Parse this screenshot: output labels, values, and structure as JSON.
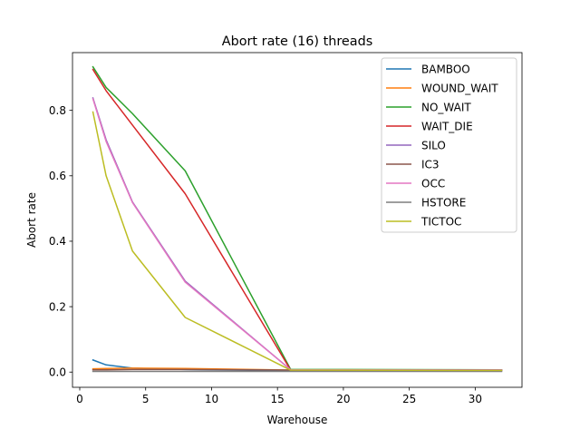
{
  "chart_data": {
    "type": "line",
    "title": "Abort rate (16) threads",
    "xlabel": "Warehouse",
    "ylabel": "Abort rate",
    "xlim": [
      -0.55,
      33.55
    ],
    "ylim": [
      -0.0465,
      0.9765
    ],
    "xticks": [
      0,
      5,
      10,
      15,
      20,
      25,
      30
    ],
    "xtick_labels": [
      "0",
      "5",
      "10",
      "15",
      "20",
      "25",
      "30"
    ],
    "yticks": [
      0.0,
      0.2,
      0.4,
      0.6,
      0.8
    ],
    "ytick_labels": [
      "0.0",
      "0.2",
      "0.4",
      "0.6",
      "0.8"
    ],
    "grid": false,
    "legend_position": "top-right",
    "x": [
      1,
      2,
      4,
      8,
      16,
      32
    ],
    "series": [
      {
        "name": "BAMBOO",
        "color": "#1f77b4",
        "values": [
          0.037,
          0.022,
          0.012,
          0.008,
          0.004,
          0.003
        ]
      },
      {
        "name": "WOUND_WAIT",
        "color": "#ff7f0e",
        "values": [
          0.01,
          0.011,
          0.012,
          0.011,
          0.006,
          0.005
        ]
      },
      {
        "name": "NO_WAIT",
        "color": "#2ca02c",
        "values": [
          0.933,
          0.87,
          0.79,
          0.615,
          0.008,
          0.007
        ]
      },
      {
        "name": "WAIT_DIE",
        "color": "#d62728",
        "values": [
          0.925,
          0.86,
          0.755,
          0.545,
          0.006,
          0.006
        ]
      },
      {
        "name": "SILO",
        "color": "#9467bd",
        "values": [
          0.838,
          0.71,
          0.52,
          0.278,
          0.007,
          0.006
        ]
      },
      {
        "name": "IC3",
        "color": "#8c564b",
        "values": [
          0.007,
          0.007,
          0.008,
          0.008,
          0.006,
          0.005
        ]
      },
      {
        "name": "OCC",
        "color": "#e377c2",
        "values": [
          0.835,
          0.705,
          0.518,
          0.275,
          0.007,
          0.006
        ]
      },
      {
        "name": "HSTORE",
        "color": "#7f7f7f",
        "values": [
          0.002,
          0.002,
          0.002,
          0.002,
          0.002,
          0.002
        ]
      },
      {
        "name": "TICTOC",
        "color": "#bcbd22",
        "values": [
          0.795,
          0.6,
          0.37,
          0.167,
          0.006,
          0.005
        ]
      }
    ]
  }
}
